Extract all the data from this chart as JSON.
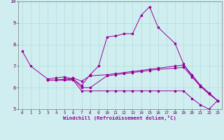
{
  "xlabel": "Windchill (Refroidissement éolien,°C)",
  "xlim": [
    -0.5,
    23.5
  ],
  "ylim": [
    5,
    10
  ],
  "yticks": [
    5,
    6,
    7,
    8,
    9,
    10
  ],
  "xticks": [
    0,
    1,
    2,
    3,
    4,
    5,
    6,
    7,
    8,
    9,
    10,
    11,
    12,
    13,
    14,
    15,
    16,
    17,
    18,
    19,
    20,
    21,
    22,
    23
  ],
  "bg_color": "#d0eef0",
  "line_color": "#990099",
  "grid_color": "#a8d8d8",
  "s1_x": [
    0,
    1,
    3,
    4,
    5,
    6,
    7,
    8,
    9,
    10,
    11,
    12,
    13,
    14,
    15,
    16,
    18,
    19,
    20,
    21,
    22,
    23
  ],
  "s1_y": [
    7.7,
    7.0,
    6.4,
    6.45,
    6.5,
    6.4,
    6.1,
    6.6,
    7.0,
    8.35,
    8.4,
    8.5,
    8.5,
    9.35,
    9.75,
    8.8,
    8.05,
    7.1,
    6.5,
    6.1,
    5.75,
    5.4
  ],
  "s2_x": [
    3,
    4,
    5,
    6,
    7,
    8,
    10,
    11,
    12,
    13,
    14,
    15,
    16,
    18,
    19,
    20,
    21,
    22,
    23
  ],
  "s2_y": [
    6.35,
    6.35,
    6.4,
    6.45,
    6.3,
    6.55,
    6.6,
    6.65,
    6.7,
    6.75,
    6.8,
    6.85,
    6.9,
    7.0,
    7.05,
    6.6,
    6.1,
    5.75,
    5.4
  ],
  "s3_x": [
    3,
    4,
    5,
    6,
    7,
    8,
    10,
    11,
    12,
    13,
    14,
    15,
    16,
    18,
    19,
    20,
    21,
    22,
    23
  ],
  "s3_y": [
    6.35,
    6.35,
    6.35,
    6.4,
    6.0,
    6.0,
    6.55,
    6.6,
    6.65,
    6.7,
    6.75,
    6.8,
    6.85,
    6.9,
    6.95,
    6.5,
    6.05,
    5.7,
    5.4
  ],
  "s4_x": [
    3,
    4,
    5,
    6,
    7,
    8,
    10,
    11,
    12,
    13,
    14,
    15,
    16,
    18,
    19,
    20,
    21,
    22,
    23
  ],
  "s4_y": [
    6.35,
    6.35,
    6.35,
    6.35,
    5.85,
    5.85,
    5.85,
    5.85,
    5.85,
    5.85,
    5.85,
    5.85,
    5.85,
    5.85,
    5.85,
    5.5,
    5.2,
    5.0,
    5.4
  ]
}
